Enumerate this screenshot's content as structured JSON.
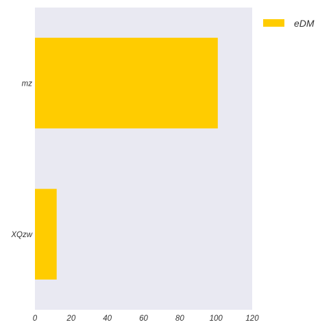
{
  "chart_data": {
    "type": "bar",
    "orientation": "horizontal",
    "categories": [
      "mz",
      "XQzw"
    ],
    "series": [
      {
        "name": "eDM",
        "values": [
          101,
          12
        ],
        "color": "#ffcc00"
      }
    ],
    "title": "",
    "xlabel": "",
    "ylabel": "",
    "xlim": [
      0,
      120
    ],
    "xticks": [
      0,
      20,
      40,
      60,
      80,
      100,
      120
    ],
    "xtick_labels": [
      "0",
      "20",
      "40",
      "60",
      "80",
      "100",
      "120"
    ],
    "grid": false,
    "legend_position": "outside-top-right",
    "plot_background": "#e9e9f2"
  }
}
